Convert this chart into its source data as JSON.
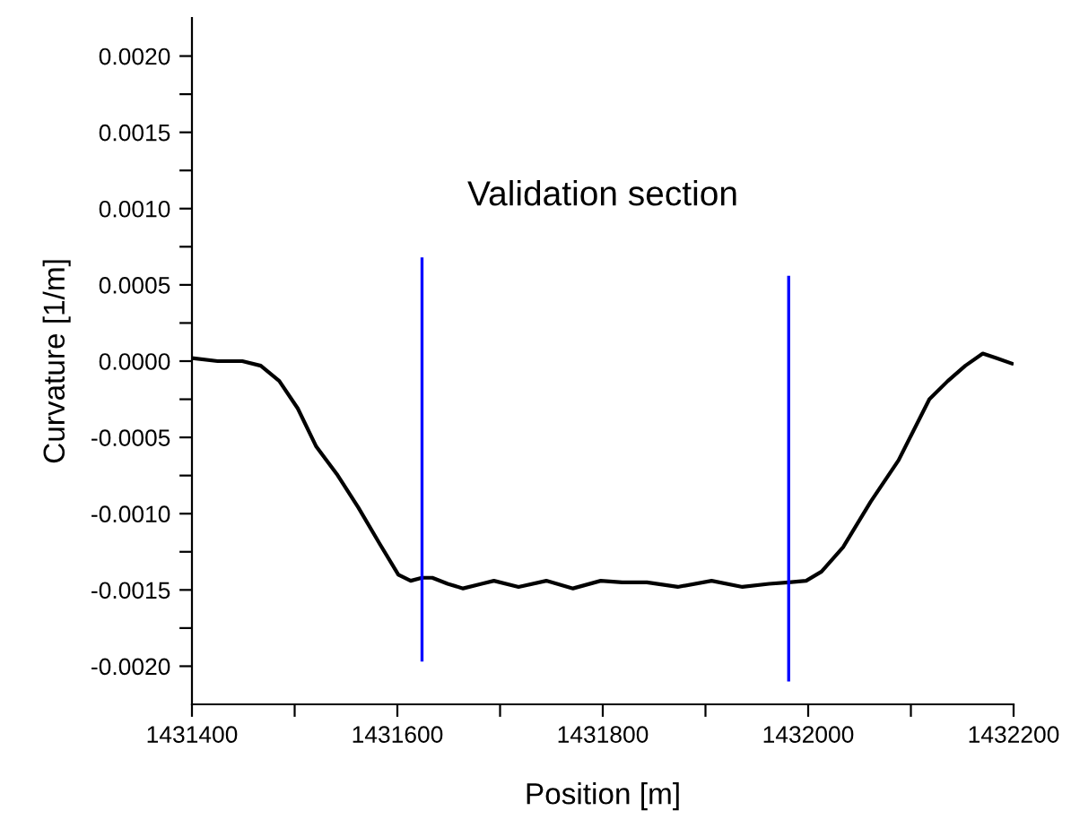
{
  "chart_data": {
    "type": "line",
    "xlabel": "Position [m]",
    "ylabel": "Curvature [1/m]",
    "annotations": [
      "Validation section"
    ],
    "xlim": [
      1431400,
      1432200
    ],
    "xticks": [
      1431400,
      {
        "value": 1431500,
        "label": null
      },
      1431600,
      {
        "value": 1431700,
        "label": null
      },
      1431800,
      {
        "value": 1431900,
        "label": null
      },
      1432000,
      {
        "value": 1432100,
        "label": null
      },
      1432200
    ],
    "ylim": [
      -0.00225,
      0.00225
    ],
    "yticks": [
      {
        "value": -0.002,
        "label": "-0.0020"
      },
      {
        "value": -0.00175,
        "label": null
      },
      {
        "value": -0.0015,
        "label": "-0.0015"
      },
      {
        "value": -0.00125,
        "label": null
      },
      {
        "value": -0.001,
        "label": "-0.0010"
      },
      {
        "value": -0.00075,
        "label": null
      },
      {
        "value": -0.0005,
        "label": "-0.0005"
      },
      {
        "value": -0.00025,
        "label": null
      },
      {
        "value": 0,
        "label": "0.0000"
      },
      {
        "value": 0.00025,
        "label": null
      },
      {
        "value": 0.0005,
        "label": "0.0005"
      },
      {
        "value": 0.00075,
        "label": null
      },
      {
        "value": 0.001,
        "label": "0.0010"
      },
      {
        "value": 0.00125,
        "label": null
      },
      {
        "value": 0.0015,
        "label": "0.0015"
      },
      {
        "value": 0.00175,
        "label": null
      },
      {
        "value": 0.002,
        "label": "0.0020"
      }
    ],
    "grid": false,
    "series": [
      {
        "color": "#000000",
        "x": [
          1431400,
          1431425,
          1431449,
          1431467,
          1431485,
          1431503,
          1431521,
          1431541,
          1431562,
          1431583,
          1431601,
          1431613,
          1431624,
          1431634,
          1431649,
          1431664,
          1431682,
          1431694,
          1431718,
          1431745,
          1431771,
          1431798,
          1431819,
          1431843,
          1431873,
          1431906,
          1431936,
          1431962,
          1431981,
          1431998,
          1432013,
          1432034,
          1432061,
          1432088,
          1432118,
          1432136,
          1432153,
          1432170,
          1432183,
          1432200
        ],
        "values": [
          2e-05,
          0,
          0,
          -3e-05,
          -0.00013,
          -0.00031,
          -0.00056,
          -0.00074,
          -0.00096,
          -0.0012,
          -0.0014,
          -0.00144,
          -0.00142,
          -0.00142,
          -0.00146,
          -0.00149,
          -0.00146,
          -0.00144,
          -0.00148,
          -0.00144,
          -0.00149,
          -0.00144,
          -0.00145,
          -0.00145,
          -0.00148,
          -0.00144,
          -0.00148,
          -0.00146,
          -0.00145,
          -0.00144,
          -0.00138,
          -0.00122,
          -0.00092,
          -0.00065,
          -0.00025,
          -0.00013,
          -3e-05,
          5e-05,
          2e-05,
          -2e-05
        ]
      },
      {
        "color": "#0000ff",
        "x": [
          1431624,
          1431624
        ],
        "values": [
          0.00068,
          -0.00197
        ]
      },
      {
        "color": "#0000ff",
        "x": [
          1431981,
          1431981
        ],
        "values": [
          0.00056,
          -0.0021
        ]
      }
    ]
  }
}
